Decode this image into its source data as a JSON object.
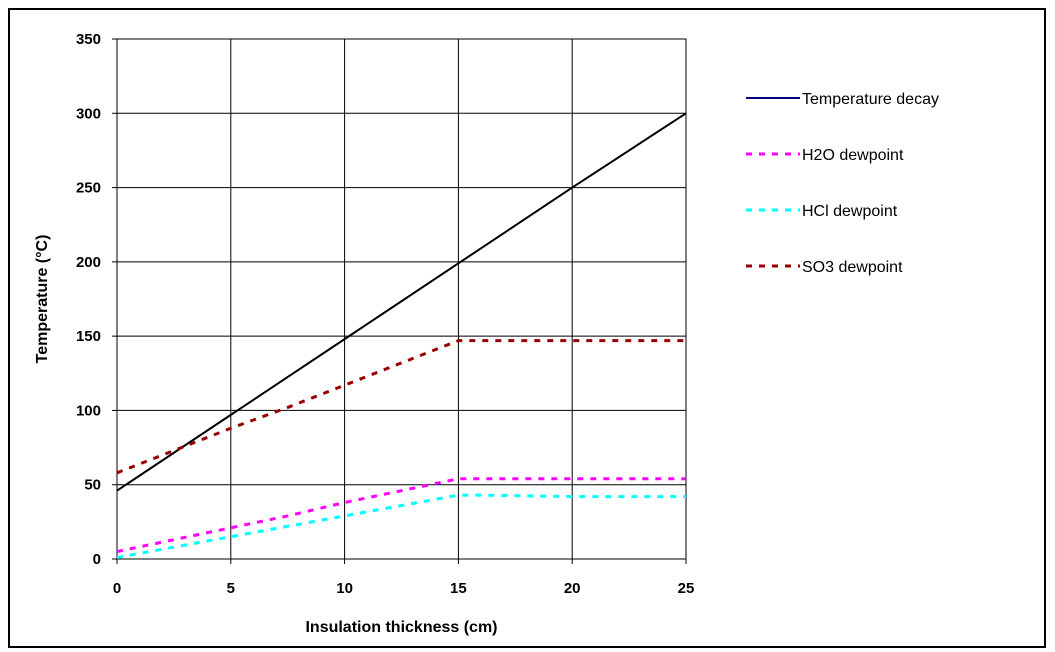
{
  "chart_data": {
    "type": "line",
    "title": "",
    "xlabel": "Insulation thickness (cm)",
    "ylabel": "Temperature (°C)",
    "xlim": [
      0,
      25
    ],
    "ylim": [
      0,
      350
    ],
    "x_ticks": [
      0,
      5,
      10,
      15,
      20,
      25
    ],
    "y_ticks": [
      0,
      50,
      100,
      150,
      200,
      250,
      300,
      350
    ],
    "grid": true,
    "legend_position": "right",
    "series": [
      {
        "name": "Temperature decay",
        "color": "#000000",
        "style": "solid",
        "legend_color": "#000080",
        "points": [
          [
            0,
            46
          ],
          [
            5,
            97
          ],
          [
            10,
            148
          ],
          [
            15,
            199
          ],
          [
            20,
            250
          ],
          [
            25,
            300
          ]
        ]
      },
      {
        "name": "H2O dewpoint",
        "color": "#ff00ff",
        "style": "dashed",
        "points": [
          [
            0,
            5
          ],
          [
            2.5,
            13
          ],
          [
            5,
            21
          ],
          [
            7.5,
            29
          ],
          [
            10,
            38
          ],
          [
            12.5,
            46
          ],
          [
            15,
            54
          ],
          [
            20,
            54
          ],
          [
            25,
            54
          ]
        ]
      },
      {
        "name": "HCl dewpoint",
        "color": "#00ffff",
        "style": "dashed",
        "points": [
          [
            0,
            1
          ],
          [
            2.5,
            8
          ],
          [
            5,
            15
          ],
          [
            7.5,
            22
          ],
          [
            10,
            29
          ],
          [
            12.5,
            36
          ],
          [
            15,
            43
          ],
          [
            16,
            43
          ],
          [
            20,
            42
          ],
          [
            25,
            42
          ]
        ]
      },
      {
        "name": "SO3 dewpoint",
        "color": "#990000",
        "style": "dashed",
        "points": [
          [
            0,
            58
          ],
          [
            2.5,
            73
          ],
          [
            5,
            88
          ],
          [
            7.5,
            102
          ],
          [
            10,
            117
          ],
          [
            12.5,
            132
          ],
          [
            15,
            147
          ],
          [
            20,
            147
          ],
          [
            25,
            147
          ]
        ]
      }
    ]
  }
}
